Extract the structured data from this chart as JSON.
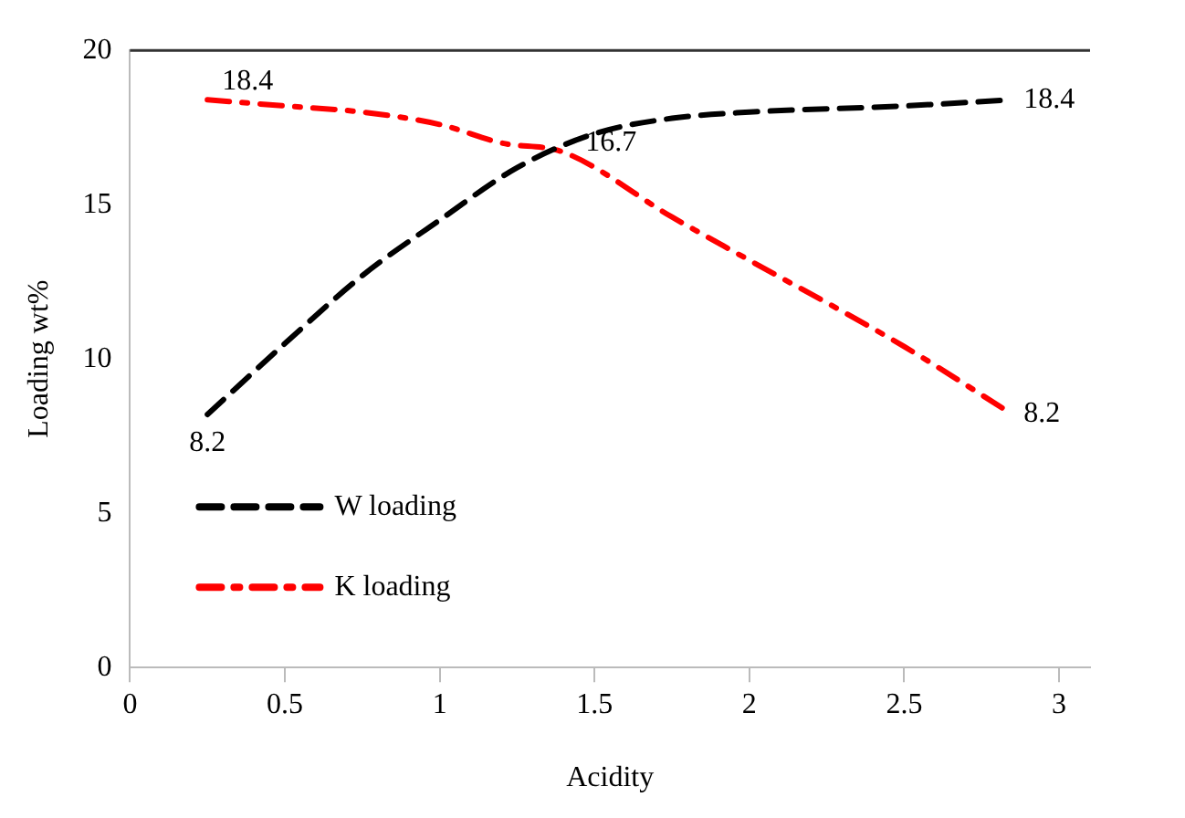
{
  "chart_data": {
    "type": "line",
    "xlabel": "Acidity",
    "ylabel": "Loading wt%",
    "xlim": [
      0,
      3.1
    ],
    "xticks": [
      0,
      0.5,
      1,
      1.5,
      2,
      2.5,
      3
    ],
    "ylim": [
      0,
      20
    ],
    "yticks": [
      0,
      5,
      10,
      15,
      20
    ],
    "grid": false,
    "legend": "bottom left",
    "marker": "none",
    "series": [
      {
        "name": "W loading",
        "color": "#000000",
        "line_style": "dashed",
        "x": [
          0.25,
          0.5,
          0.75,
          1,
          1.25,
          1.5,
          1.75,
          2,
          2.5,
          2.85
        ],
        "values": [
          8.2,
          10.5,
          12.7,
          14.5,
          16.2,
          17.3,
          17.8,
          18.0,
          18.2,
          18.4
        ],
        "value_labels": [
          "8.2",
          null,
          null,
          null,
          null,
          null,
          null,
          null,
          null,
          "18.4"
        ]
      },
      {
        "name": "K loading",
        "color": "#ff0000",
        "line_style": "dashdot",
        "x": [
          0.25,
          0.5,
          0.75,
          1,
          1.2,
          1.4,
          1.75,
          2,
          2.5,
          2.85
        ],
        "values": [
          18.4,
          18.2,
          18.0,
          17.6,
          17.0,
          16.7,
          14.6,
          13.2,
          10.4,
          8.2
        ],
        "value_labels": [
          "18.4",
          null,
          null,
          null,
          null,
          "16.7",
          null,
          null,
          null,
          "8.2"
        ]
      }
    ]
  }
}
